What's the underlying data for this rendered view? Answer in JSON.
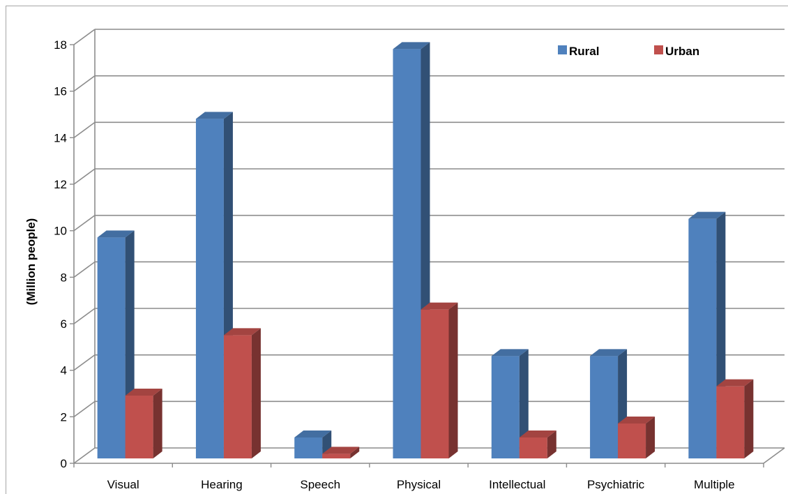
{
  "chart_data": {
    "type": "bar",
    "categories": [
      "Visual",
      "Hearing",
      "Speech",
      "Physical",
      "Intellectual",
      "Psychiatric",
      "Multiple"
    ],
    "series": [
      {
        "name": "Rural",
        "values": [
          9.5,
          14.6,
          0.9,
          17.6,
          4.4,
          4.4,
          10.3
        ],
        "color": "#4f81bd"
      },
      {
        "name": "Urban",
        "values": [
          2.7,
          5.3,
          0.2,
          6.4,
          0.9,
          1.5,
          3.1
        ],
        "color": "#c0504d"
      }
    ],
    "ylabel": "(Million people)",
    "xlabel": "",
    "ylim": [
      0,
      18
    ],
    "yticks": [
      "0",
      "2",
      "4",
      "6",
      "8",
      "10",
      "12",
      "14",
      "16",
      "18"
    ],
    "grid": true,
    "legend_position": "top-right",
    "style": "3d-clustered-column"
  }
}
